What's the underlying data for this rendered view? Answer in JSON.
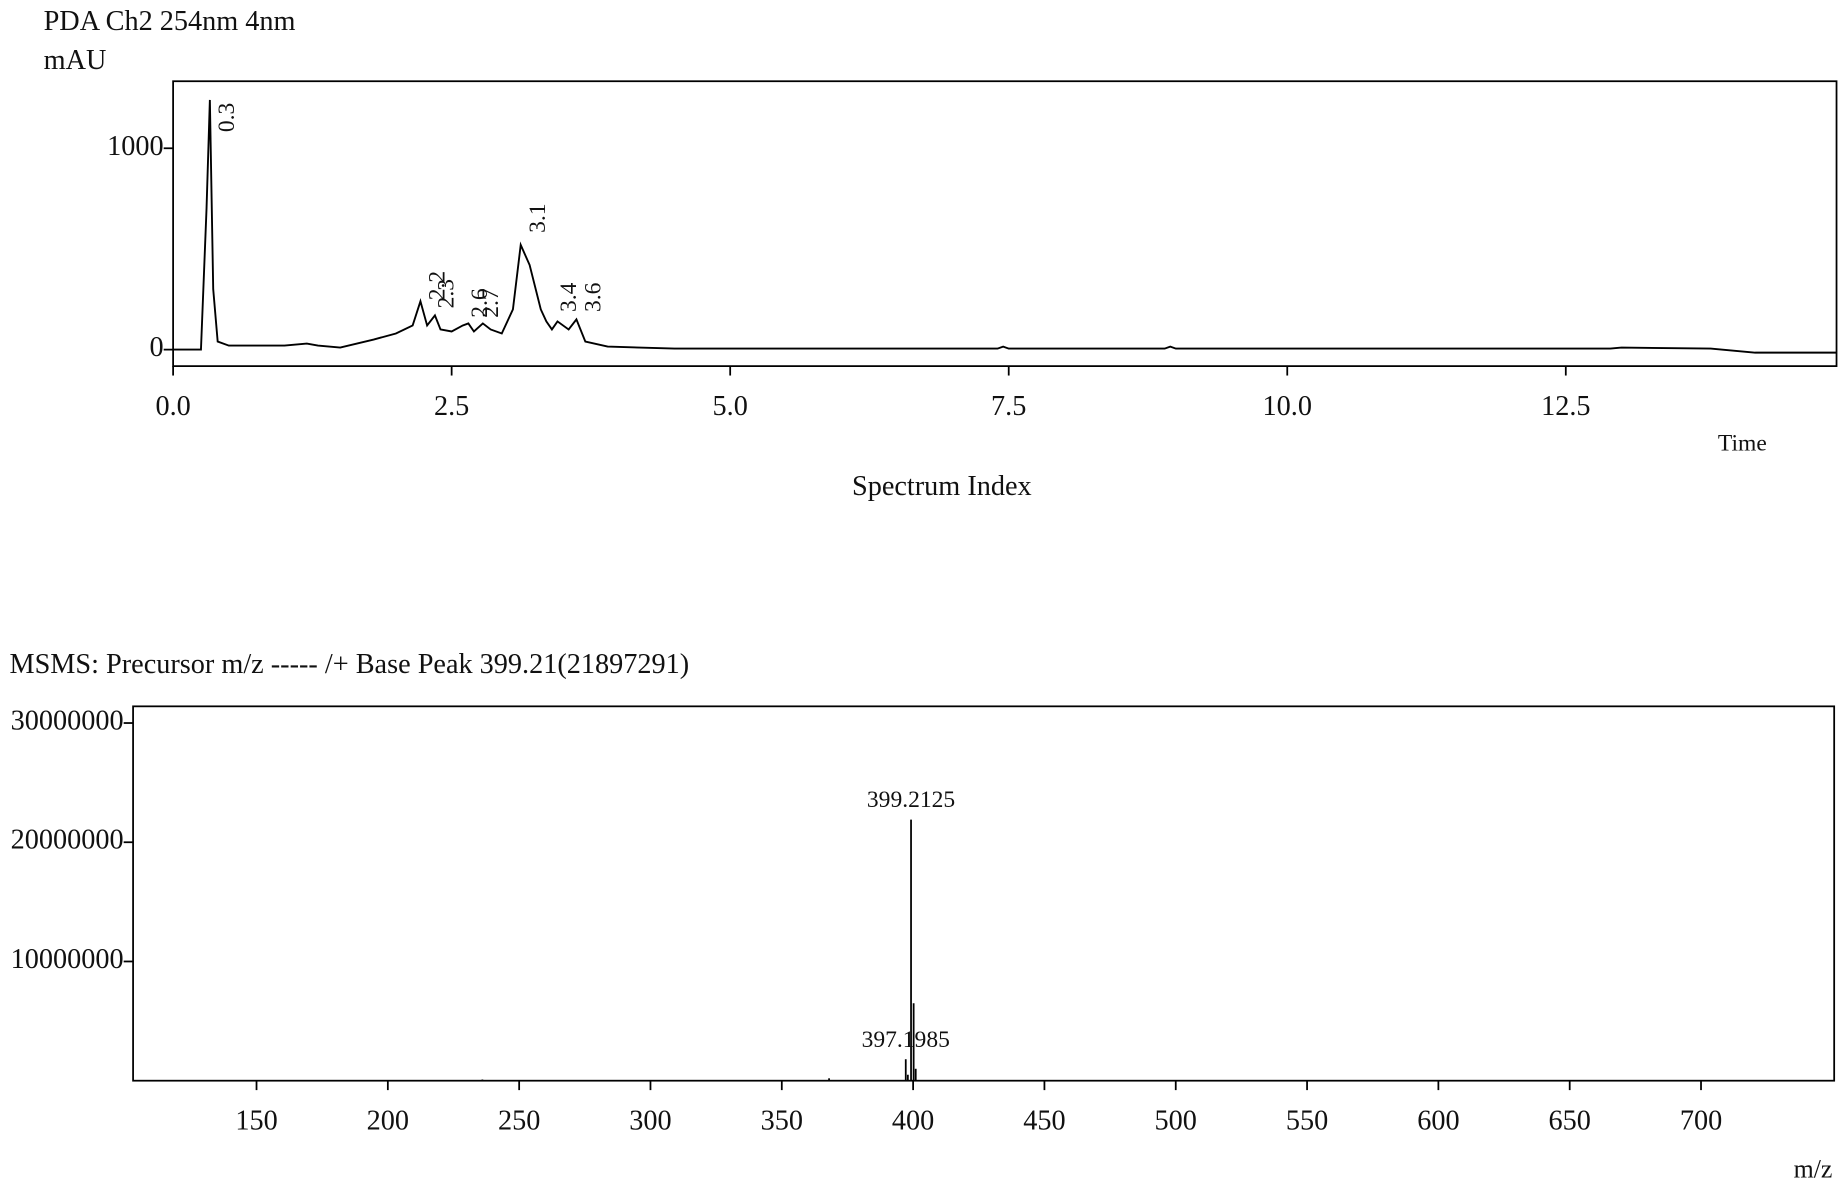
{
  "chart_data": [
    {
      "type": "line",
      "title": "PDA Ch2 254nm 4nm",
      "y_label": "mAU",
      "x_label": "Spectrum Index",
      "x_unit": "Time",
      "color": "#000000",
      "x": [
        0,
        0.25,
        0.3,
        0.33,
        0.36,
        0.4,
        0.5,
        1.0,
        1.2,
        1.3,
        1.5,
        1.8,
        2.0,
        2.15,
        2.22,
        2.28,
        2.35,
        2.4,
        2.5,
        2.6,
        2.65,
        2.7,
        2.78,
        2.85,
        2.95,
        3.05,
        3.12,
        3.2,
        3.3,
        3.35,
        3.4,
        3.45,
        3.55,
        3.62,
        3.7,
        3.9,
        4.5,
        5.0,
        7.4,
        7.45,
        7.5,
        8.9,
        8.95,
        9.0,
        12.9,
        13.0,
        13.8,
        14.2,
        14.93
      ],
      "y": [
        0,
        0,
        700,
        1240,
        300,
        40,
        20,
        20,
        30,
        20,
        10,
        50,
        80,
        120,
        240,
        120,
        170,
        100,
        90,
        120,
        130,
        90,
        130,
        100,
        80,
        200,
        520,
        420,
        200,
        140,
        100,
        140,
        100,
        150,
        40,
        15,
        5,
        5,
        5,
        15,
        5,
        5,
        15,
        5,
        5,
        10,
        5,
        -15,
        -15
      ],
      "xlim": [
        0,
        14.93
      ],
      "ylim": [
        -82,
        1333
      ],
      "xticks": [
        {
          "value": 0,
          "label": "0.0"
        },
        {
          "value": 2.5,
          "label": "2.5"
        },
        {
          "value": 5,
          "label": "5.0"
        },
        {
          "value": 7.5,
          "label": "7.5"
        },
        {
          "value": 10,
          "label": "10.0"
        },
        {
          "value": 12.5,
          "label": "12.5"
        }
      ],
      "yticks": [
        0,
        1000
      ],
      "annotations": [
        {
          "x": 0.33,
          "y": 1080,
          "text": "0.3"
        },
        {
          "x": 2.22,
          "y": 245,
          "text": "2.2"
        },
        {
          "x": 2.3,
          "y": 205,
          "text": "2.3"
        },
        {
          "x": 2.6,
          "y": 158,
          "text": "2.6"
        },
        {
          "x": 2.7,
          "y": 158,
          "text": "2.7"
        },
        {
          "x": 3.12,
          "y": 580,
          "text": "3.1"
        },
        {
          "x": 3.4,
          "y": 187,
          "text": "3.4"
        },
        {
          "x": 3.62,
          "y": 187,
          "text": "3.6"
        }
      ]
    },
    {
      "type": "stick",
      "title": "MSMS: Precursor m/z -----  /+  Base Peak 399.21(21897291)",
      "x_label": "m/z",
      "color": "#000000",
      "x": [
        236,
        368,
        397.1985,
        398,
        399.2125,
        400.2,
        401
      ],
      "values": [
        100000,
        200000,
        1800000,
        500000,
        21897291,
        6500000,
        1000000
      ],
      "xlim": [
        103,
        750.7
      ],
      "ylim": [
        0,
        31400000
      ],
      "xticks": [
        150,
        200,
        250,
        300,
        350,
        400,
        450,
        500,
        550,
        600,
        650,
        700
      ],
      "yticks": [
        10000000,
        20000000,
        30000000
      ],
      "annotations": [
        {
          "x": 399.2125,
          "y": 23400000,
          "text": "399.2125"
        },
        {
          "x": 397.1985,
          "y": 3300000,
          "text": "397.1985"
        }
      ]
    }
  ]
}
